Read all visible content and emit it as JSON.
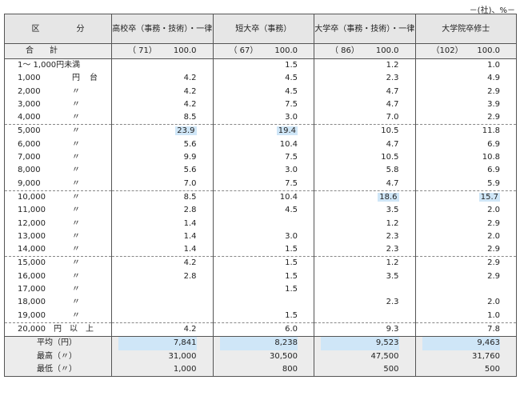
{
  "unit_note": "－(社)、%－",
  "headers": [
    "区　分",
    "高校卒（事務・技術）・一律",
    "短大卒（事務）",
    "大学卒（事務・技術）・一律",
    "大学院卒修士"
  ],
  "total": {
    "label": "合　　計",
    "cells": [
      [
        "（ 71）",
        "100.0"
      ],
      [
        "（ 67）",
        "100.0"
      ],
      [
        "（ 86）",
        "100.0"
      ],
      [
        "（102）",
        "100.0"
      ]
    ]
  },
  "groups": [
    [
      {
        "label": "1～ 1,000円未満",
        "v": [
          "",
          "1.5",
          "1.2",
          "1.0"
        ]
      },
      {
        "label": "1,000",
        "mark": "円",
        "tail": "台",
        "v": [
          "4.2",
          "4.5",
          "2.3",
          "4.9"
        ]
      },
      {
        "label": "2,000",
        "mark": "〃",
        "v": [
          "4.2",
          "4.5",
          "4.7",
          "2.9"
        ]
      },
      {
        "label": "3,000",
        "mark": "〃",
        "v": [
          "4.2",
          "7.5",
          "4.7",
          "3.9"
        ]
      },
      {
        "label": "4,000",
        "mark": "〃",
        "v": [
          "8.5",
          "3.0",
          "7.0",
          "2.9"
        ]
      }
    ],
    [
      {
        "label": "5,000",
        "mark": "〃",
        "v": [
          "23.9",
          "19.4",
          "10.5",
          "11.8"
        ],
        "hl": [
          0,
          1
        ]
      },
      {
        "label": "6,000",
        "mark": "〃",
        "v": [
          "5.6",
          "10.4",
          "4.7",
          "6.9"
        ]
      },
      {
        "label": "7,000",
        "mark": "〃",
        "v": [
          "9.9",
          "7.5",
          "10.5",
          "10.8"
        ]
      },
      {
        "label": "8,000",
        "mark": "〃",
        "v": [
          "5.6",
          "3.0",
          "5.8",
          "6.9"
        ]
      },
      {
        "label": "9,000",
        "mark": "〃",
        "v": [
          "7.0",
          "7.5",
          "4.7",
          "5.9"
        ]
      }
    ],
    [
      {
        "label": "10,000",
        "mark": "〃",
        "v": [
          "8.5",
          "10.4",
          "18.6",
          "15.7"
        ],
        "hl": [
          2,
          3
        ]
      },
      {
        "label": "11,000",
        "mark": "〃",
        "v": [
          "2.8",
          "4.5",
          "3.5",
          "2.0"
        ]
      },
      {
        "label": "12,000",
        "mark": "〃",
        "v": [
          "1.4",
          "",
          "1.2",
          "2.9"
        ]
      },
      {
        "label": "13,000",
        "mark": "〃",
        "v": [
          "1.4",
          "3.0",
          "2.3",
          "2.0"
        ]
      },
      {
        "label": "14,000",
        "mark": "〃",
        "v": [
          "1.4",
          "1.5",
          "2.3",
          "2.9"
        ]
      }
    ],
    [
      {
        "label": "15,000",
        "mark": "〃",
        "v": [
          "4.2",
          "1.5",
          "1.2",
          "2.9"
        ]
      },
      {
        "label": "16,000",
        "mark": "〃",
        "v": [
          "2.8",
          "1.5",
          "3.5",
          "2.9"
        ]
      },
      {
        "label": "17,000",
        "mark": "〃",
        "v": [
          "",
          "1.5",
          "",
          ""
        ]
      },
      {
        "label": "18,000",
        "mark": "〃",
        "v": [
          "",
          "",
          "2.3",
          "2.0"
        ]
      },
      {
        "label": "19,000",
        "mark": "〃",
        "v": [
          "",
          "1.5",
          "",
          "1.0"
        ]
      }
    ],
    [
      {
        "label": "20,000　円　以　上",
        "v": [
          "4.2",
          "6.0",
          "9.3",
          "7.8"
        ]
      }
    ]
  ],
  "stats": [
    {
      "label": "平均（円）",
      "v": [
        "7,841",
        "8,238",
        "9,523",
        "9,463"
      ],
      "hl": true
    },
    {
      "label": "最高（〃）",
      "v": [
        "31,000",
        "30,500",
        "47,500",
        "31,760"
      ]
    },
    {
      "label": "最低（〃）",
      "v": [
        "1,000",
        "800",
        "500",
        "500"
      ]
    }
  ]
}
